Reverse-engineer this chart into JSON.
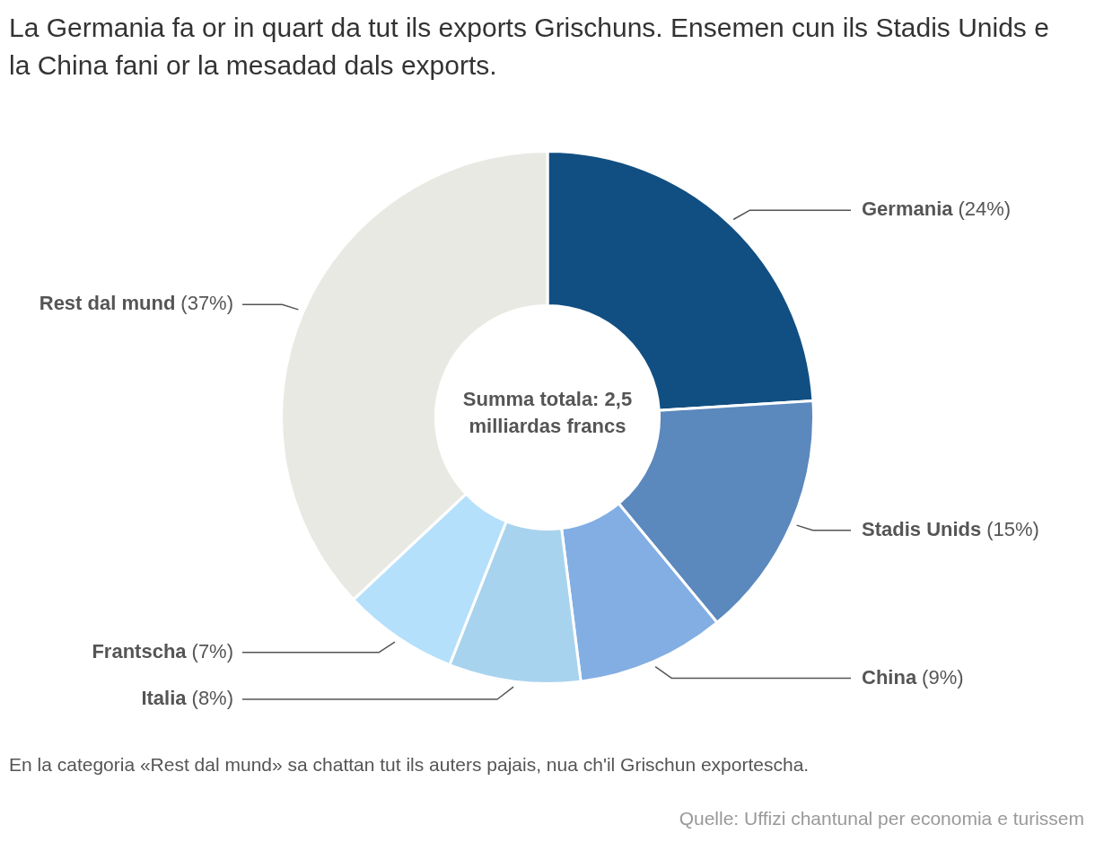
{
  "chart_data": {
    "type": "donut",
    "title": "La Germania fa or in quart da tut ils exports Grischuns. Ensemen cun ils Stadis Unids e la China fani or la mesadad dals exports.",
    "categories": [
      "Germania",
      "Stadis Unids",
      "China",
      "Italia",
      "Frantscha",
      "Rest dal mund"
    ],
    "values": [
      24,
      15,
      9,
      8,
      7,
      37
    ],
    "colors": [
      "#114f82",
      "#5b88bd",
      "#82aee3",
      "#a8d3ee",
      "#b5e0fb",
      "#e9e9e4"
    ],
    "value_labels": [
      "(24%)",
      "(15%)",
      "(9%)",
      "(8%)",
      "(7%)",
      "(37%)"
    ],
    "annotations": [
      "Summa totala: 2,5 milliardas francs",
      "En la categoria «Rest dal mund» sa chattan tut ils auters pajais, nua ch'il Grischun exportescha.",
      "Quelle: Uffizi chantunal per economia e turissem"
    ]
  }
}
